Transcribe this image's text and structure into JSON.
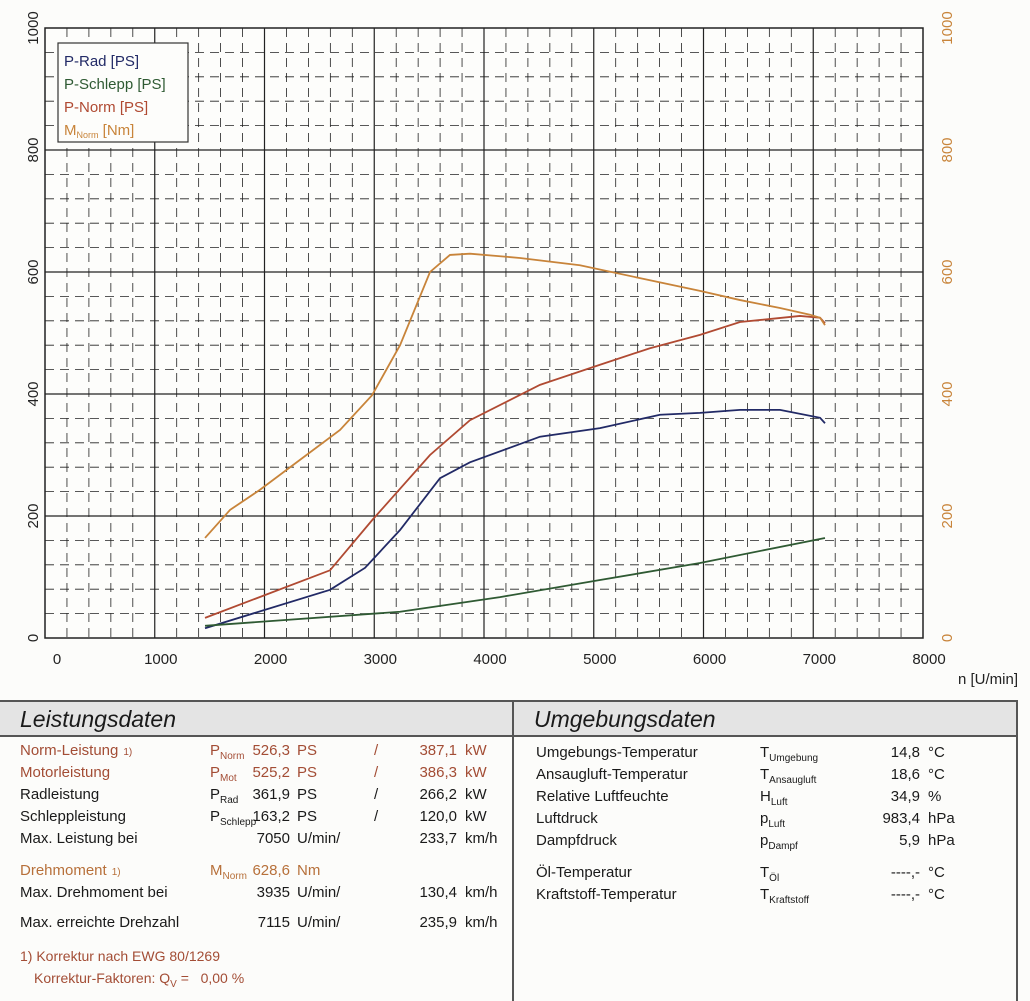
{
  "chart_data": {
    "type": "line",
    "xlabel": "n [U/min]",
    "xlim": [
      0,
      8000
    ],
    "ylim": [
      0,
      1000
    ],
    "y2lim": [
      0,
      1000
    ],
    "xticks": [
      0,
      1000,
      2000,
      3000,
      4000,
      5000,
      6000,
      7000,
      8000
    ],
    "yticks": [
      0,
      200,
      400,
      600,
      800,
      1000
    ],
    "grid": true,
    "legend_position": "top-left",
    "series": [
      {
        "name": "P-Rad [PS]",
        "color": "#222a66",
        "x": [
          1458,
          2597,
          2916,
          3235,
          3599,
          3872,
          4510,
          5057,
          5604,
          5968,
          6333,
          6697,
          7062,
          7107
        ],
        "y": [
          16,
          79,
          115,
          177,
          262,
          288,
          330,
          344,
          366,
          369,
          374,
          374,
          361,
          352
        ]
      },
      {
        "name": "P-Schlepp [PS]",
        "color": "#2f5a33",
        "x": [
          1458,
          3235,
          4146,
          5057,
          5968,
          7107
        ],
        "y": [
          20,
          43,
          67,
          95,
          123,
          164
        ]
      },
      {
        "name": "P-Norm [PS]",
        "color": "#b04a32",
        "x": [
          1458,
          2597,
          2980,
          3508,
          3872,
          4510,
          5057,
          5512,
          5968,
          6333,
          6879,
          7062,
          7107
        ],
        "y": [
          33,
          111,
          193,
          300,
          357,
          415,
          448,
          475,
          497,
          518,
          528,
          525,
          516
        ]
      },
      {
        "name": "M",
        "name_sub": "Norm",
        "name_suffix": " [Nm]",
        "color": "#c8843a",
        "axis": "right",
        "x": [
          1458,
          1686,
          1959,
          2323,
          2688,
          2980,
          3235,
          3508,
          3690,
          3872,
          4328,
          4874,
          5421,
          5968,
          6333,
          6697,
          6970,
          7062,
          7107
        ],
        "y": [
          164,
          210,
          243,
          292,
          341,
          398,
          480,
          600,
          628,
          630,
          623,
          611,
          590,
          569,
          554,
          541,
          530,
          525,
          513
        ]
      }
    ]
  },
  "leistung": {
    "title": "Leistungsdaten",
    "rows": [
      {
        "label": "Norm-Leistung",
        "note": "1)",
        "sym": "P",
        "sub": "Norm",
        "v1": "526,3",
        "u1": "PS",
        "sep": "/",
        "v2": "387,1",
        "u2": "kW",
        "cls": "rb"
      },
      {
        "label": "Motorleistung",
        "note": "",
        "sym": "P",
        "sub": "Mot",
        "v1": "525,2",
        "u1": "PS",
        "sep": "/",
        "v2": "386,3",
        "u2": "kW",
        "cls": "rb"
      },
      {
        "label": "Radleistung",
        "note": "",
        "sym": "P",
        "sub": "Rad",
        "v1": "361,9",
        "u1": "PS",
        "sep": "/",
        "v2": "266,2",
        "u2": "kW",
        "cls": ""
      },
      {
        "label": "Schleppleistung",
        "note": "",
        "sym": "P",
        "sub": "Schlepp",
        "v1": "163,2",
        "u1": "PS",
        "sep": "/",
        "v2": "120,0",
        "u2": "kW",
        "cls": ""
      },
      {
        "label": "Max. Leistung bei",
        "note": "",
        "sym": "",
        "sub": "",
        "v1": "7050",
        "u1": "U/min/",
        "sep": "",
        "v2": "233,7",
        "u2": "km/h",
        "cls": ""
      },
      {
        "label": "Drehmoment",
        "note": "1)",
        "sym": "M",
        "sub": "Norm",
        "v1": "628,6",
        "u1": "Nm",
        "sep": "",
        "v2": "",
        "u2": "",
        "cls": "or"
      },
      {
        "label": "Max. Drehmoment bei",
        "note": "",
        "sym": "",
        "sub": "",
        "v1": "3935",
        "u1": "U/min/",
        "sep": "",
        "v2": "130,4",
        "u2": "km/h",
        "cls": ""
      },
      {
        "label": "Max. erreichte Drehzahl",
        "note": "",
        "sym": "",
        "sub": "",
        "v1": "7115",
        "u1": "U/min/",
        "sep": "",
        "v2": "235,9",
        "u2": "km/h",
        "cls": ""
      }
    ],
    "footnote1": "1) Korrektur nach EWG 80/1269",
    "footnote2_label": "Korrektur-Faktoren: Q",
    "footnote2_sub": "V",
    "footnote2_value": " =   0,00 %"
  },
  "umgebung": {
    "title": "Umgebungsdaten",
    "rows": [
      {
        "label": "Umgebungs-Temperatur",
        "sym": "T",
        "sub": "Umgebung",
        "v": "14,8",
        "u": "°C"
      },
      {
        "label": "Ansaugluft-Temperatur",
        "sym": "T",
        "sub": "Ansaugluft",
        "v": "18,6",
        "u": "°C"
      },
      {
        "label": "Relative Luftfeuchte",
        "sym": "H",
        "sub": "Luft",
        "v": "34,9",
        "u": "%"
      },
      {
        "label": "Luftdruck",
        "sym": "p",
        "sub": "Luft",
        "v": "983,4",
        "u": "hPa"
      },
      {
        "label": "Dampfdruck",
        "sym": "p",
        "sub": "Dampf",
        "v": "5,9",
        "u": "hPa"
      },
      {
        "label": "Öl-Temperatur",
        "sym": "T",
        "sub": "Öl",
        "v": "----,-",
        "u": "°C"
      },
      {
        "label": "Kraftstoff-Temperatur",
        "sym": "T",
        "sub": "Kraftstoff",
        "v": "----,-",
        "u": "°C"
      }
    ]
  }
}
